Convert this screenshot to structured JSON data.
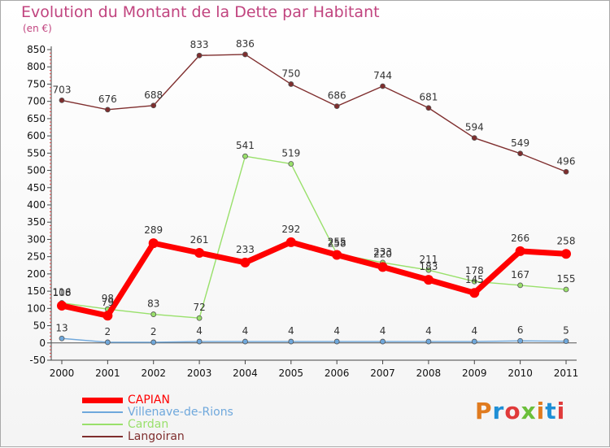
{
  "page": {
    "title": "Evolution du Montant de la Dette par Habitant",
    "subtitle": "(en €)"
  },
  "logo": {
    "text": "Proxiti",
    "colors": [
      "#e07b1f",
      "#1f8fd6",
      "#e03a3a",
      "#6bbf3a",
      "#e07b1f",
      "#1f8fd6",
      "#e03a3a"
    ]
  },
  "chart_data": {
    "type": "line",
    "title": "Evolution du Montant de la Dette par Habitant",
    "subtitle": "(en €)",
    "xlabel": "",
    "ylabel": "",
    "x": [
      "2000",
      "2001",
      "2002",
      "2003",
      "2004",
      "2005",
      "2006",
      "2007",
      "2008",
      "2009",
      "2010",
      "2011"
    ],
    "ylim": [
      -50,
      850
    ],
    "yticks": [
      -50,
      0,
      50,
      100,
      150,
      200,
      250,
      300,
      350,
      400,
      450,
      500,
      550,
      600,
      650,
      700,
      750,
      800,
      850
    ],
    "grid": false,
    "legend_position": "bottom-left",
    "series": [
      {
        "name": "CAPIAN",
        "color": "#ff0000",
        "values": [
          108,
          79,
          289,
          261,
          233,
          292,
          255,
          220,
          183,
          145,
          266,
          258
        ]
      },
      {
        "name": "Villenave-de-Rions",
        "color": "#6fa8dc",
        "values": [
          13,
          2,
          2,
          4,
          4,
          4,
          4,
          4,
          4,
          4,
          6,
          5
        ]
      },
      {
        "name": "Cardan",
        "color": "#99e06b",
        "values": [
          116,
          98,
          83,
          72,
          541,
          519,
          258,
          233,
          211,
          178,
          167,
          155
        ]
      },
      {
        "name": "Langoiran",
        "color": "#7f2e2e",
        "values": [
          703,
          676,
          688,
          833,
          836,
          750,
          686,
          744,
          681,
          594,
          549,
          496
        ]
      }
    ]
  }
}
